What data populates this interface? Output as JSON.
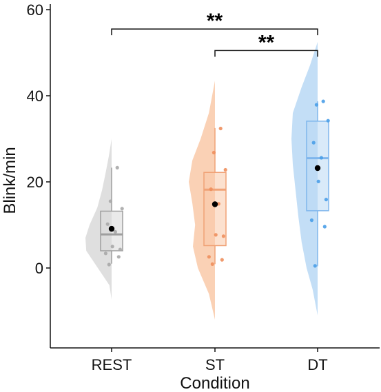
{
  "chart_data": {
    "type": "raincloud",
    "xlabel": "Condition",
    "ylabel": "Blink/min",
    "categories": [
      "REST",
      "ST",
      "DT"
    ],
    "ylim": [
      -16,
      61
    ],
    "yticks": [
      0,
      20,
      40,
      60
    ],
    "grid": false,
    "groups": [
      {
        "name": "REST",
        "fill_color": "#d9d9d9",
        "edge_color": "#9e9e9e",
        "point_color": "#a8a8a8",
        "box": {
          "q1": 4.0,
          "median": 7.8,
          "q3": 13.2,
          "whisker_low": 1.0,
          "whisker_high": 23.3
        },
        "mean": 9.1,
        "points": [
          23.3,
          15.5,
          13.8,
          10.2,
          8.4,
          5.0,
          4.3,
          3.4,
          2.6,
          0.8
        ],
        "density": {
          "y": [
            -7.3,
            -4,
            0,
            4,
            7,
            10,
            14,
            18,
            22,
            26,
            30
          ],
          "w": [
            0,
            0.08,
            0.5,
            0.92,
            0.95,
            0.8,
            0.52,
            0.35,
            0.22,
            0.1,
            0
          ]
        }
      },
      {
        "name": "ST",
        "fill_color": "#f9c9a8",
        "edge_color": "#f0a277",
        "point_color": "#ee8f5d",
        "box": {
          "q1": 5.2,
          "median": 18.2,
          "q3": 22.2,
          "whisker_low": 0.9,
          "whisker_high": 32.5
        },
        "mean": 14.8,
        "points": [
          32.4,
          26.8,
          22.8,
          18.3,
          14.9,
          7.7,
          7.4,
          2.6,
          1.9,
          0.9
        ],
        "density": {
          "y": [
            -12,
            -6,
            0,
            5,
            10,
            15,
            20,
            25,
            30,
            36,
            43.5
          ],
          "w": [
            0,
            0.22,
            0.62,
            0.8,
            0.72,
            0.82,
            0.95,
            0.82,
            0.52,
            0.22,
            0
          ]
        }
      },
      {
        "name": "DT",
        "fill_color": "#b9d8f4",
        "edge_color": "#7fb6ec",
        "point_color": "#4a9fe8",
        "box": {
          "q1": 13.3,
          "median": 25.5,
          "q3": 34.1,
          "whisker_low": 0.4,
          "whisker_high": 38.7
        },
        "mean": 23.2,
        "points": [
          38.7,
          37.9,
          34.2,
          29.1,
          25.6,
          20.1,
          15.9,
          11.1,
          9.6,
          0.5
        ],
        "density": {
          "y": [
            -11,
            -5,
            0,
            6,
            12,
            18,
            24,
            30,
            36,
            42,
            47,
            52.5
          ],
          "w": [
            0,
            0.18,
            0.4,
            0.58,
            0.7,
            0.8,
            0.9,
            0.95,
            0.9,
            0.58,
            0.28,
            0
          ]
        }
      }
    ],
    "annotations": [
      {
        "from": "REST",
        "to": "DT",
        "y": 55.5,
        "label": "**"
      },
      {
        "from": "ST",
        "to": "DT",
        "y": 50.5,
        "label": "**"
      }
    ]
  }
}
